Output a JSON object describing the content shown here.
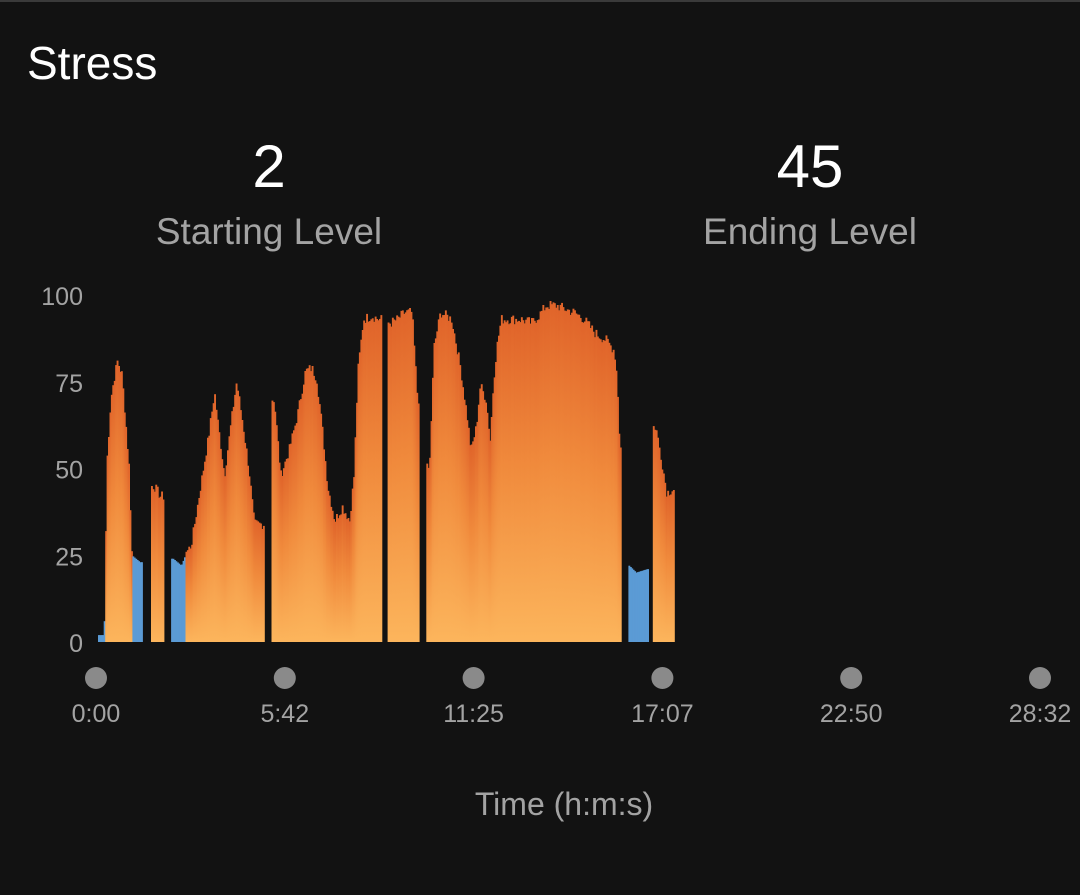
{
  "title": "Stress",
  "stats": {
    "starting": {
      "value": "2",
      "label": "Starting Level"
    },
    "ending": {
      "value": "45",
      "label": "Ending Level"
    }
  },
  "colors": {
    "background": "#121212",
    "high": "#f08a3c",
    "low": "#5b9bd5",
    "marker": "#8a8a8a",
    "text": "#a3a3a3"
  },
  "chart_data": {
    "type": "bar",
    "title": "Stress",
    "xlabel": "Time (h:m:s)",
    "ylabel": "",
    "ylim": [
      0,
      100
    ],
    "y_ticks": [
      "0",
      "25",
      "50",
      "75",
      "100"
    ],
    "x_ticks": [
      "0:00",
      "5:42",
      "11:25",
      "17:07",
      "22:50",
      "28:32"
    ],
    "x_range_seconds": [
      0,
      1712
    ],
    "low_threshold": 25,
    "colors": {
      "low": "#5b9bd5",
      "high": "#f08a3c"
    },
    "keypoints": [
      [
        0,
        2
      ],
      [
        10,
        2
      ],
      [
        15,
        52
      ],
      [
        22,
        70
      ],
      [
        28,
        76
      ],
      [
        34,
        81
      ],
      [
        42,
        77
      ],
      [
        48,
        65
      ],
      [
        55,
        50
      ],
      [
        60,
        25
      ],
      [
        75,
        23
      ],
      [
        82,
        0
      ],
      [
        92,
        0
      ],
      [
        100,
        45
      ],
      [
        112,
        42
      ],
      [
        125,
        0
      ],
      [
        135,
        24
      ],
      [
        150,
        22
      ],
      [
        160,
        26
      ],
      [
        168,
        28
      ],
      [
        178,
        38
      ],
      [
        190,
        50
      ],
      [
        200,
        60
      ],
      [
        210,
        72
      ],
      [
        216,
        63
      ],
      [
        228,
        48
      ],
      [
        240,
        63
      ],
      [
        250,
        75
      ],
      [
        262,
        62
      ],
      [
        272,
        50
      ],
      [
        282,
        34
      ],
      [
        295,
        34
      ],
      [
        305,
        0
      ],
      [
        310,
        0
      ],
      [
        318,
        70
      ],
      [
        330,
        48
      ],
      [
        345,
        55
      ],
      [
        360,
        65
      ],
      [
        375,
        78
      ],
      [
        386,
        79
      ],
      [
        395,
        76
      ],
      [
        405,
        62
      ],
      [
        415,
        45
      ],
      [
        428,
        35
      ],
      [
        442,
        39
      ],
      [
        455,
        35
      ],
      [
        463,
        48
      ],
      [
        470,
        78
      ],
      [
        480,
        93
      ],
      [
        495,
        94
      ],
      [
        508,
        93
      ],
      [
        520,
        0
      ],
      [
        530,
        92
      ],
      [
        542,
        93
      ],
      [
        555,
        95
      ],
      [
        568,
        95
      ],
      [
        578,
        70
      ],
      [
        585,
        0
      ],
      [
        590,
        0
      ],
      [
        600,
        50
      ],
      [
        608,
        85
      ],
      [
        620,
        95
      ],
      [
        640,
        93
      ],
      [
        655,
        80
      ],
      [
        668,
        65
      ],
      [
        675,
        55
      ],
      [
        685,
        62
      ],
      [
        692,
        74
      ],
      [
        702,
        70
      ],
      [
        710,
        58
      ],
      [
        716,
        75
      ],
      [
        722,
        85
      ],
      [
        730,
        93
      ],
      [
        745,
        93
      ],
      [
        765,
        93
      ],
      [
        785,
        92
      ],
      [
        798,
        94
      ],
      [
        812,
        97
      ],
      [
        830,
        97
      ],
      [
        845,
        96
      ],
      [
        862,
        95
      ],
      [
        880,
        93
      ],
      [
        900,
        89
      ],
      [
        920,
        87
      ],
      [
        935,
        84
      ],
      [
        940,
        76
      ],
      [
        945,
        56
      ],
      [
        950,
        0
      ],
      [
        958,
        0
      ],
      [
        962,
        22
      ],
      [
        975,
        20
      ],
      [
        995,
        21
      ],
      [
        1000,
        0
      ],
      [
        1010,
        62
      ],
      [
        1020,
        53
      ],
      [
        1030,
        43
      ],
      [
        1040,
        44
      ],
      [
        1050,
        0
      ]
    ]
  }
}
